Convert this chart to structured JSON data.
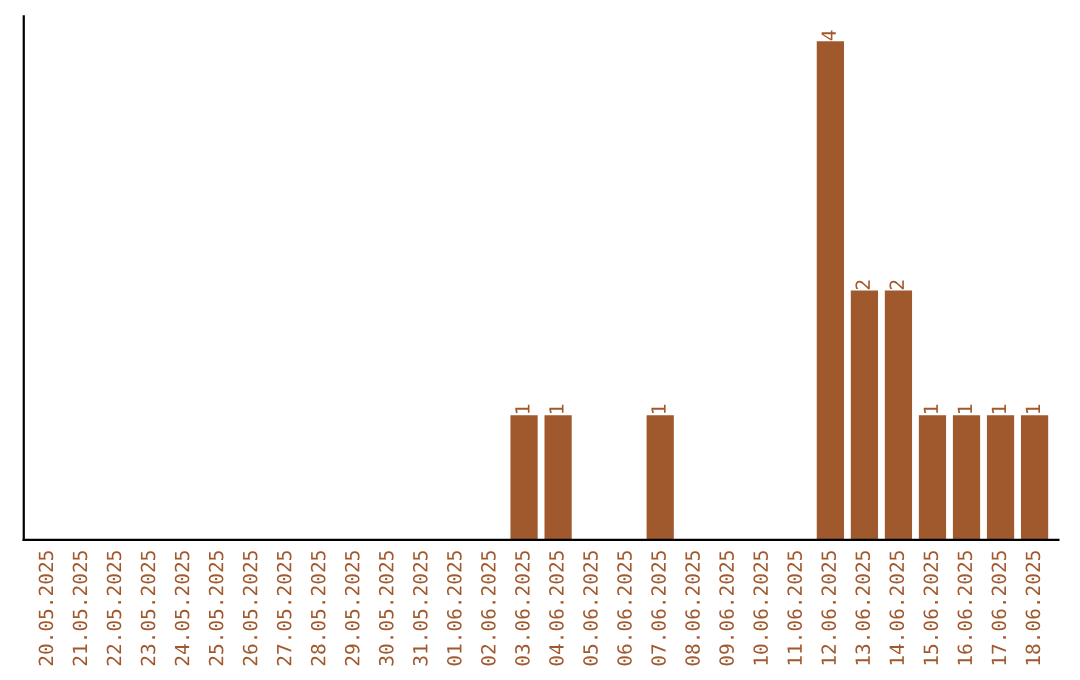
{
  "chart_data": {
    "type": "bar",
    "categories": [
      "20.05.2025",
      "21.05.2025",
      "22.05.2025",
      "23.05.2025",
      "24.05.2025",
      "25.05.2025",
      "26.05.2025",
      "27.05.2025",
      "28.05.2025",
      "29.05.2025",
      "30.05.2025",
      "31.05.2025",
      "01.06.2025",
      "02.06.2025",
      "03.06.2025",
      "04.06.2025",
      "05.06.2025",
      "06.06.2025",
      "07.06.2025",
      "08.06.2025",
      "09.06.2025",
      "10.06.2025",
      "11.06.2025",
      "12.06.2025",
      "13.06.2025",
      "14.06.2025",
      "15.06.2025",
      "16.06.2025",
      "17.06.2025",
      "18.06.2025"
    ],
    "values": [
      null,
      null,
      null,
      null,
      null,
      null,
      null,
      null,
      null,
      null,
      null,
      null,
      null,
      null,
      1,
      1,
      null,
      null,
      1,
      null,
      null,
      null,
      null,
      4,
      2,
      2,
      1,
      1,
      1,
      1
    ],
    "data_labels": true,
    "color": "#a0582d",
    "tick_labels": "x",
    "grid": false,
    "legend": false
  }
}
